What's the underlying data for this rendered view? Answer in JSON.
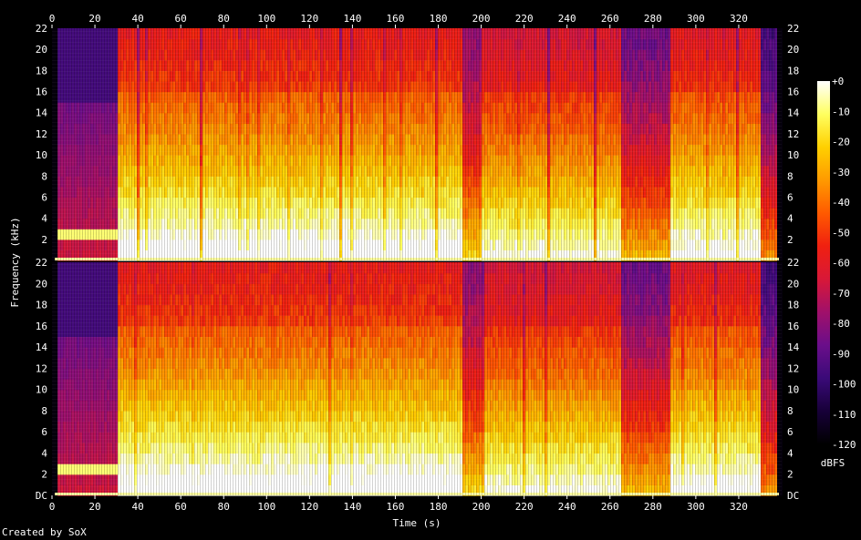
{
  "chart_data": {
    "type": "heatmap",
    "title": "",
    "xlabel": "Time (s)",
    "ylabel": "Frequency (kHz)",
    "xlim": [
      0,
      340
    ],
    "ylim": [
      0,
      22
    ],
    "x_ticks": [
      0,
      20,
      40,
      60,
      80,
      100,
      120,
      140,
      160,
      180,
      200,
      220,
      240,
      260,
      280,
      300,
      320
    ],
    "y_ticks": [
      2,
      4,
      6,
      8,
      10,
      12,
      14,
      16,
      18,
      20,
      22
    ],
    "y_zero_label": "DC",
    "channels": 2,
    "grid": false,
    "colorbar": {
      "label": "dBFS",
      "range": [
        -120,
        0
      ],
      "ticks": [
        0,
        -10,
        -20,
        -30,
        -40,
        -50,
        -60,
        -70,
        -80,
        -90,
        -100,
        -110,
        -120
      ],
      "tick_labels": [
        "+0",
        "-10",
        "-20",
        "-30",
        "-40",
        "-50",
        "-60",
        "-70",
        "-80",
        "-90",
        "-100",
        "-110",
        "-120"
      ],
      "colormap": [
        "#000000",
        "#170038",
        "#3a0a78",
        "#6a0e8a",
        "#a0106a",
        "#d81838",
        "#f02010",
        "#ff5a00",
        "#ff9a00",
        "#ffd000",
        "#ffff60",
        "#ffffff"
      ]
    },
    "segments": [
      {
        "t_start": 0,
        "t_end": 2,
        "level": "silence"
      },
      {
        "t_start": 2,
        "t_end": 30,
        "level": "quiet intro, tone band near 2-3 kHz"
      },
      {
        "t_start": 30,
        "t_end": 190,
        "level": "loud, full band to ~22 kHz"
      },
      {
        "t_start": 190,
        "t_end": 200,
        "level": "medium"
      },
      {
        "t_start": 200,
        "t_end": 265,
        "level": "loud with dips"
      },
      {
        "t_start": 265,
        "t_end": 287,
        "level": "medium"
      },
      {
        "t_start": 287,
        "t_end": 330,
        "level": "loud"
      },
      {
        "t_start": 330,
        "t_end": 337,
        "level": "fade out"
      }
    ]
  },
  "footer": {
    "credit": "Created by SoX"
  }
}
